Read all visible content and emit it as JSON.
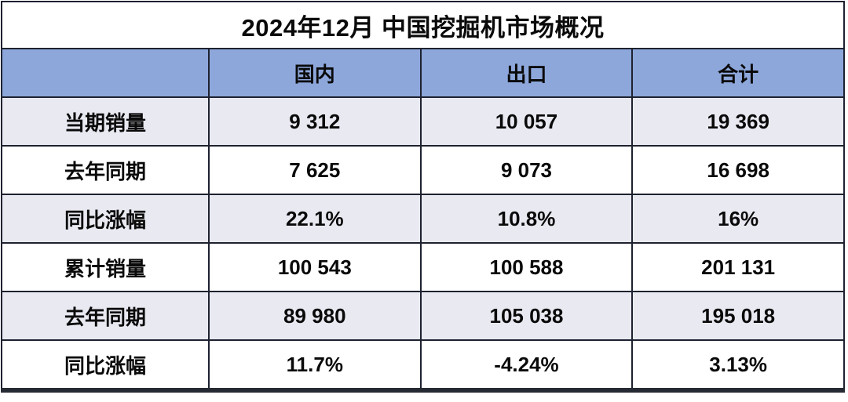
{
  "title": "2024年12月 中国挖掘机市场概况",
  "colors": {
    "header_bg": "#8DA7DB",
    "row_alt_bg": "#E9E9F2",
    "row_bg": "#FFFFFF",
    "border": "#1E2230",
    "text": "#0A0A0A"
  },
  "chart_data": {
    "type": "table",
    "title": "2024年12月 中国挖掘机市场概况",
    "columns": [
      "",
      "国内",
      "出口",
      "合计"
    ],
    "rows": [
      {
        "label": "当期销量",
        "values": [
          "9 312",
          "10 057",
          "19 369"
        ]
      },
      {
        "label": "去年同期",
        "values": [
          "7 625",
          "9 073",
          "16 698"
        ]
      },
      {
        "label": "同比涨幅",
        "values": [
          "22.1%",
          "10.8%",
          "16%"
        ]
      },
      {
        "label": "累计销量",
        "values": [
          "100 543",
          "100 588",
          "201 131"
        ]
      },
      {
        "label": "去年同期",
        "values": [
          "89 980",
          "105 038",
          "195 018"
        ]
      },
      {
        "label": "同比涨幅",
        "values": [
          "11.7%",
          "-4.24%",
          "3.13%"
        ]
      }
    ],
    "layout": {
      "alternating_row_shading": true,
      "numbers_thousands_separator": "space",
      "all_text_bold": true
    }
  }
}
